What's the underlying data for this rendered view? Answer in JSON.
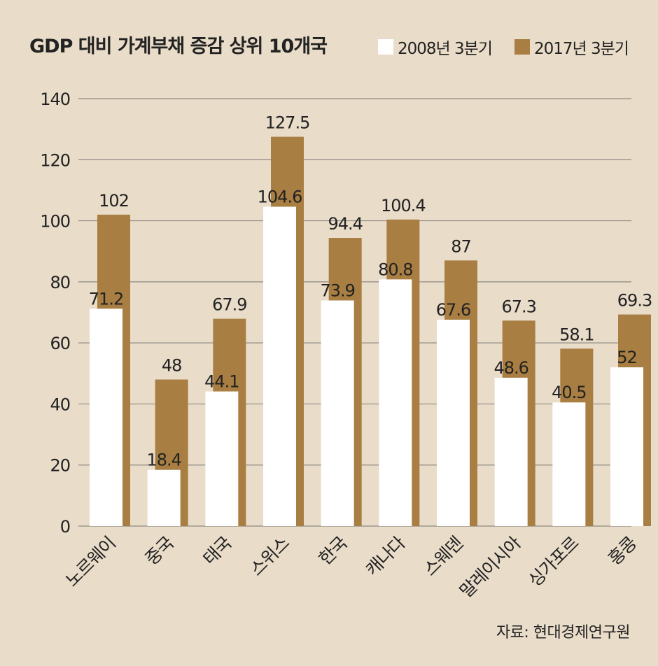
{
  "chart_data": {
    "type": "bar",
    "title": "GDP 대비 가계부채 증감 상위 10개국",
    "categories": [
      "노르웨이",
      "중국",
      "태국",
      "스위스",
      "한국",
      "캐나다",
      "스웨덴",
      "말레이시아",
      "싱가포르",
      "홍콩"
    ],
    "series": [
      {
        "name": "2008년 3분기",
        "color": "#ffffff",
        "values": [
          71.2,
          18.4,
          44.1,
          104.6,
          73.9,
          80.8,
          67.6,
          48.6,
          40.5,
          52
        ]
      },
      {
        "name": "2017년 3분기",
        "color": "#a97e42",
        "values": [
          102,
          48,
          67.9,
          127.5,
          94.4,
          100.4,
          87,
          67.3,
          58.1,
          69.3
        ]
      }
    ],
    "value_labels": [
      [
        "71.2",
        "18.4",
        "44.1",
        "104.6",
        "73.9",
        "80.8",
        "67.6",
        "48.6",
        "40.5",
        "52"
      ],
      [
        "102",
        "48",
        "67.9",
        "127.5",
        "94.4",
        "100.4",
        "87",
        "67.3",
        "58.1",
        "69.3"
      ]
    ],
    "ylim": [
      0,
      140
    ],
    "yticks": [
      0,
      20,
      40,
      60,
      80,
      100,
      120,
      140
    ],
    "grid": true,
    "legend": "top-right",
    "xlabel": "",
    "ylabel": ""
  },
  "source": "자료: 현대경제연구원",
  "colors": {
    "background": "#e9dcc9",
    "grid": "#8f8a82",
    "text": "#222222"
  }
}
